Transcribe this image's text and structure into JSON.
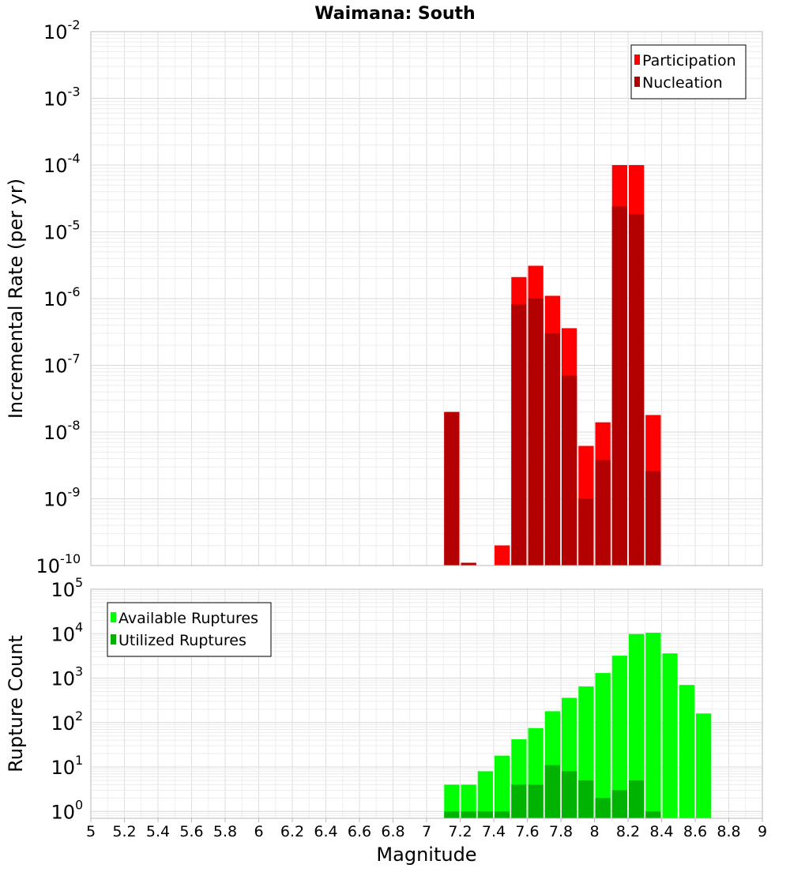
{
  "chart_data": [
    {
      "type": "bar",
      "title": "Waimana: South",
      "xlabel": "",
      "ylabel": "Incremental Rate (per yr)",
      "xlim": [
        5,
        9
      ],
      "ylim": [
        1e-10,
        0.01
      ],
      "yscale": "log",
      "grid": true,
      "legend_position": "top-right",
      "bar_width": 0.1,
      "y_ticks": [
        {
          "base": "10",
          "exp": "-10",
          "value": 1e-10
        },
        {
          "base": "10",
          "exp": "-9",
          "value": 1e-09
        },
        {
          "base": "10",
          "exp": "-8",
          "value": 1e-08
        },
        {
          "base": "10",
          "exp": "-7",
          "value": 1e-07
        },
        {
          "base": "10",
          "exp": "-6",
          "value": 1e-06
        },
        {
          "base": "10",
          "exp": "-5",
          "value": 1e-05
        },
        {
          "base": "10",
          "exp": "-4",
          "value": 0.0001
        },
        {
          "base": "10",
          "exp": "-3",
          "value": 0.001
        },
        {
          "base": "10",
          "exp": "-2",
          "value": 0.01
        }
      ],
      "series": [
        {
          "name": "Participation",
          "color": "#ff0000",
          "points": [
            {
              "x": 7.15,
              "y": 2e-08
            },
            {
              "x": 7.25,
              "y": 1.1e-10
            },
            {
              "x": 7.45,
              "y": 2e-10
            },
            {
              "x": 7.55,
              "y": 2.1e-06
            },
            {
              "x": 7.65,
              "y": 3.1e-06
            },
            {
              "x": 7.75,
              "y": 1.1e-06
            },
            {
              "x": 7.85,
              "y": 3.6e-07
            },
            {
              "x": 7.95,
              "y": 6.2e-09
            },
            {
              "x": 8.05,
              "y": 1.4e-08
            },
            {
              "x": 8.15,
              "y": 0.0001
            },
            {
              "x": 8.25,
              "y": 0.0001
            },
            {
              "x": 8.35,
              "y": 1.8e-08
            }
          ]
        },
        {
          "name": "Nucleation",
          "color": "#b30000",
          "points": [
            {
              "x": 7.15,
              "y": 2e-08
            },
            {
              "x": 7.25,
              "y": 1.1e-10
            },
            {
              "x": 7.45,
              "y": 1e-10
            },
            {
              "x": 7.55,
              "y": 8.2e-07
            },
            {
              "x": 7.65,
              "y": 1e-06
            },
            {
              "x": 7.75,
              "y": 3e-07
            },
            {
              "x": 7.85,
              "y": 7e-08
            },
            {
              "x": 7.95,
              "y": 1e-09
            },
            {
              "x": 8.05,
              "y": 3.8e-09
            },
            {
              "x": 8.15,
              "y": 2.4e-05
            },
            {
              "x": 8.25,
              "y": 1.85e-05
            },
            {
              "x": 8.35,
              "y": 2.6e-09
            }
          ]
        }
      ]
    },
    {
      "type": "bar",
      "title": "",
      "xlabel": "Magnitude",
      "ylabel": "Rupture Count",
      "xlim": [
        5,
        9
      ],
      "ylim": [
        0.7,
        100000.0
      ],
      "yscale": "log",
      "grid": true,
      "legend_position": "top-left",
      "bar_width": 0.1,
      "x_ticks": [
        "5",
        "5.2",
        "5.4",
        "5.6",
        "5.8",
        "6",
        "6.2",
        "6.4",
        "6.6",
        "6.8",
        "7",
        "7.2",
        "7.4",
        "7.6",
        "7.8",
        "8",
        "8.2",
        "8.4",
        "8.6",
        "8.8",
        "9"
      ],
      "y_ticks": [
        {
          "base": "10",
          "exp": "0",
          "value": 1
        },
        {
          "base": "10",
          "exp": "1",
          "value": 10
        },
        {
          "base": "10",
          "exp": "2",
          "value": 100
        },
        {
          "base": "10",
          "exp": "3",
          "value": 1000
        },
        {
          "base": "10",
          "exp": "4",
          "value": 10000
        },
        {
          "base": "10",
          "exp": "5",
          "value": 100000
        }
      ],
      "series": [
        {
          "name": "Available Ruptures",
          "color": "#00ff00",
          "points": [
            {
              "x": 7.15,
              "y": 4
            },
            {
              "x": 7.25,
              "y": 4
            },
            {
              "x": 7.35,
              "y": 8
            },
            {
              "x": 7.45,
              "y": 18
            },
            {
              "x": 7.55,
              "y": 42
            },
            {
              "x": 7.65,
              "y": 75
            },
            {
              "x": 7.75,
              "y": 180
            },
            {
              "x": 7.85,
              "y": 360
            },
            {
              "x": 7.95,
              "y": 650
            },
            {
              "x": 8.05,
              "y": 1300
            },
            {
              "x": 8.15,
              "y": 3200
            },
            {
              "x": 8.25,
              "y": 9800
            },
            {
              "x": 8.35,
              "y": 10500
            },
            {
              "x": 8.45,
              "y": 3600
            },
            {
              "x": 8.55,
              "y": 700
            },
            {
              "x": 8.65,
              "y": 160
            }
          ]
        },
        {
          "name": "Utilized Ruptures",
          "color": "#00b300",
          "points": [
            {
              "x": 7.15,
              "y": 1
            },
            {
              "x": 7.25,
              "y": 1
            },
            {
              "x": 7.35,
              "y": 1
            },
            {
              "x": 7.45,
              "y": 1
            },
            {
              "x": 7.55,
              "y": 4
            },
            {
              "x": 7.65,
              "y": 4
            },
            {
              "x": 7.75,
              "y": 11
            },
            {
              "x": 7.85,
              "y": 8
            },
            {
              "x": 7.95,
              "y": 5
            },
            {
              "x": 8.05,
              "y": 2
            },
            {
              "x": 8.15,
              "y": 3
            },
            {
              "x": 8.25,
              "y": 5
            },
            {
              "x": 8.35,
              "y": 1
            }
          ]
        }
      ]
    }
  ]
}
